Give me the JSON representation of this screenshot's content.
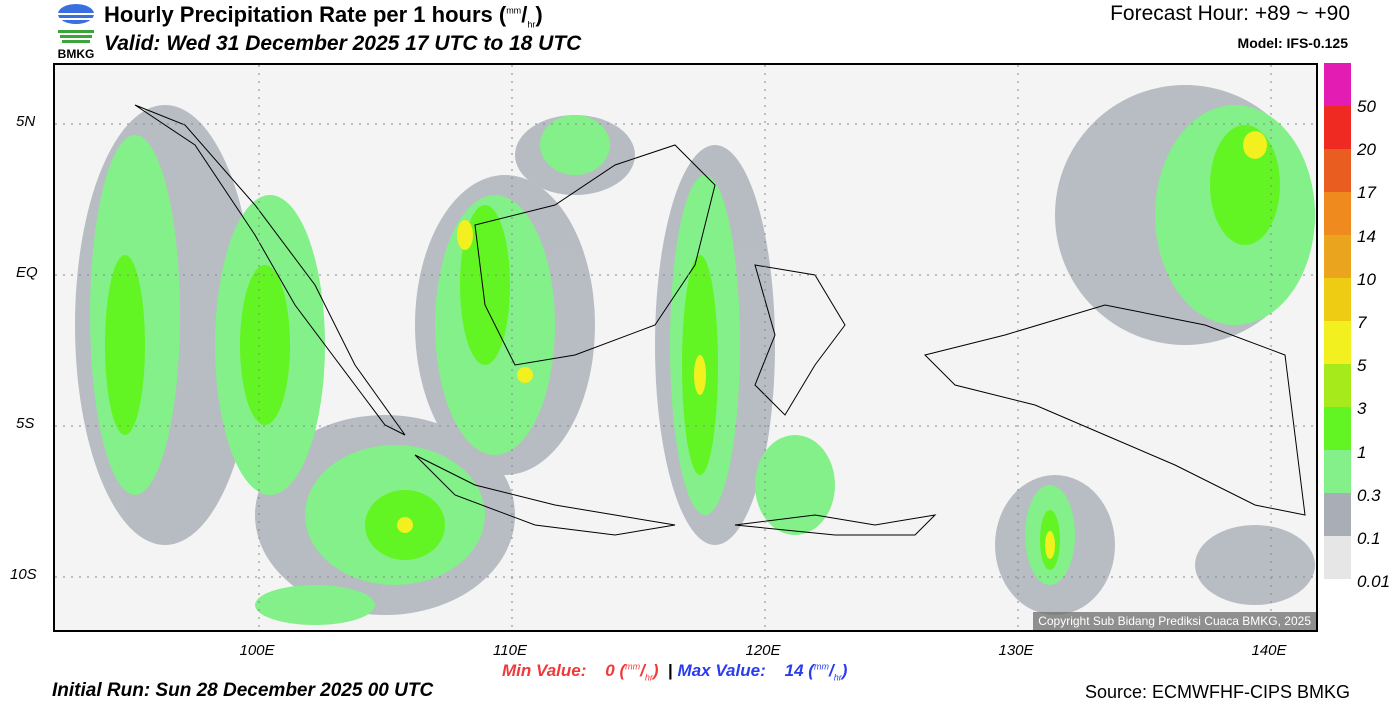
{
  "header": {
    "logo_text": "BMKG",
    "title": "Hourly Precipitation Rate per 1 hours (",
    "unit_num": "mm",
    "unit_den": "hr",
    "title_close": ")",
    "valid": "Valid: Wed 31 December 2025 17 UTC to 18 UTC",
    "forecast_hour": "Forecast Hour: +89 ~ +90",
    "model": "Model: IFS-0.125"
  },
  "map": {
    "lat_labels": [
      "5N",
      "EQ",
      "5S",
      "10S"
    ],
    "lon_labels": [
      "100E",
      "110E",
      "120E",
      "130E",
      "140E"
    ],
    "copyright": "Copyright Sub Bidang Prediksi Cuaca BMKG, 2025"
  },
  "colorbar": {
    "labels": [
      "50",
      "20",
      "17",
      "14",
      "10",
      "7",
      "5",
      "3",
      "1",
      "0.3",
      "0.1",
      "0.01"
    ],
    "colors": [
      "#e31cb4",
      "#ee2a22",
      "#e95d20",
      "#ee8a1e",
      "#eaa41e",
      "#efcc14",
      "#f2f01e",
      "#a6ea1c",
      "#63f424",
      "#84f08a",
      "#a9aeb6",
      "#e6e6e6"
    ]
  },
  "footer": {
    "min_label": "Min Value:",
    "min_value": "0",
    "separator": "|",
    "max_label": "Max Value:",
    "max_value": "14",
    "unit_num": "mm",
    "unit_den": "hr",
    "initial_run": "Initial Run: Sun 28 December 2025 00 UTC",
    "source": "Source: ECMWFHF-CIPS BMKG"
  }
}
